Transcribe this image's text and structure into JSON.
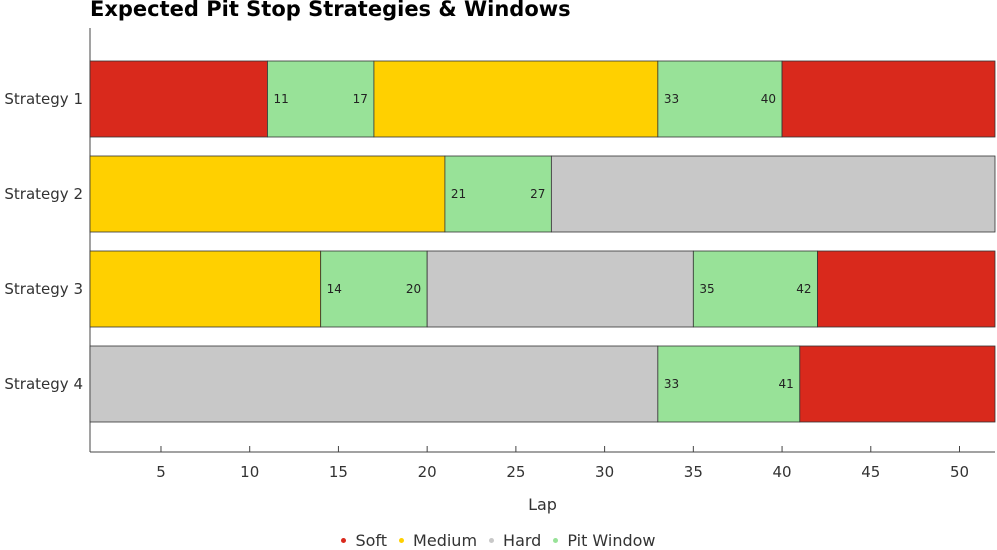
{
  "chart_data": {
    "type": "bar",
    "orientation": "horizontal-stacked",
    "title": "Expected Pit Stop Strategies & Windows",
    "xlabel": "Lap",
    "xlim": [
      1,
      52
    ],
    "xticks": [
      5,
      10,
      15,
      20,
      25,
      30,
      35,
      40,
      45,
      50
    ],
    "categories": [
      "Strategy 1",
      "Strategy 2",
      "Strategy 3",
      "Strategy 4"
    ],
    "colors": {
      "Soft": "#d9291c",
      "Medium": "#ffd000",
      "Hard": "#c8c8c8",
      "Pit Window": "#98e298"
    },
    "legend": {
      "position": "bottom-center",
      "entries": [
        "Soft",
        "Medium",
        "Hard",
        "Pit Window"
      ]
    },
    "strategies": [
      {
        "name": "Strategy 1",
        "segments": [
          {
            "compound": "Soft",
            "start": 1,
            "end": 11
          },
          {
            "compound": "Pit Window",
            "start": 11,
            "end": 17,
            "start_label": "11",
            "end_label": "17"
          },
          {
            "compound": "Medium",
            "start": 17,
            "end": 33
          },
          {
            "compound": "Pit Window",
            "start": 33,
            "end": 40,
            "start_label": "33",
            "end_label": "40"
          },
          {
            "compound": "Soft",
            "start": 40,
            "end": 52
          }
        ]
      },
      {
        "name": "Strategy 2",
        "segments": [
          {
            "compound": "Medium",
            "start": 1,
            "end": 21
          },
          {
            "compound": "Pit Window",
            "start": 21,
            "end": 27,
            "start_label": "21",
            "end_label": "27"
          },
          {
            "compound": "Hard",
            "start": 27,
            "end": 52
          }
        ]
      },
      {
        "name": "Strategy 3",
        "segments": [
          {
            "compound": "Medium",
            "start": 1,
            "end": 14
          },
          {
            "compound": "Pit Window",
            "start": 14,
            "end": 20,
            "start_label": "14",
            "end_label": "20"
          },
          {
            "compound": "Hard",
            "start": 20,
            "end": 35
          },
          {
            "compound": "Pit Window",
            "start": 35,
            "end": 42,
            "start_label": "35",
            "end_label": "42"
          },
          {
            "compound": "Soft",
            "start": 42,
            "end": 52
          }
        ]
      },
      {
        "name": "Strategy 4",
        "segments": [
          {
            "compound": "Hard",
            "start": 1,
            "end": 33
          },
          {
            "compound": "Pit Window",
            "start": 33,
            "end": 41,
            "start_label": "33",
            "end_label": "41"
          },
          {
            "compound": "Soft",
            "start": 41,
            "end": 52
          }
        ]
      }
    ]
  }
}
